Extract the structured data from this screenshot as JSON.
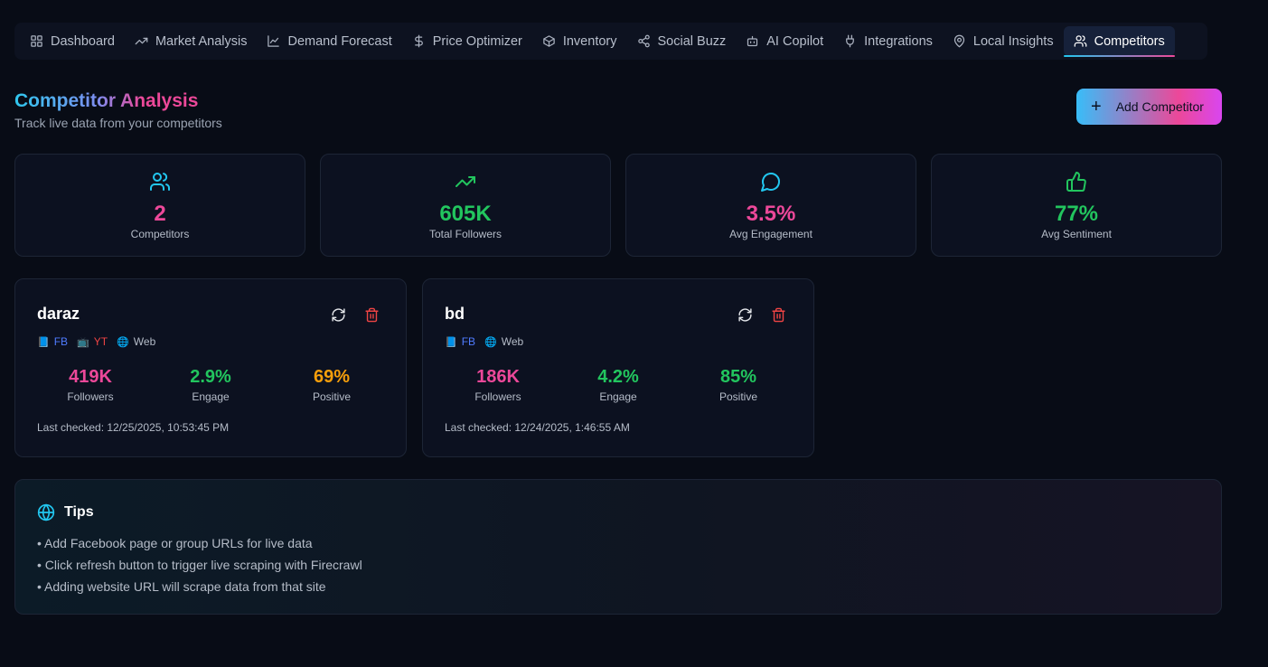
{
  "nav": {
    "items": [
      {
        "label": "Dashboard",
        "icon": "grid-icon"
      },
      {
        "label": "Market Analysis",
        "icon": "trending-up-icon"
      },
      {
        "label": "Demand Forecast",
        "icon": "line-chart-icon"
      },
      {
        "label": "Price Optimizer",
        "icon": "dollar-icon"
      },
      {
        "label": "Inventory",
        "icon": "box-icon"
      },
      {
        "label": "Social Buzz",
        "icon": "share-icon"
      },
      {
        "label": "AI Copilot",
        "icon": "bot-icon"
      },
      {
        "label": "Integrations",
        "icon": "plug-icon"
      },
      {
        "label": "Local Insights",
        "icon": "map-pin-icon"
      },
      {
        "label": "Competitors",
        "icon": "users-icon",
        "active": true
      }
    ]
  },
  "header": {
    "title": "Competitor Analysis",
    "subtitle": "Track live data from your competitors",
    "add_button": "Add Competitor"
  },
  "stats": [
    {
      "value": "2",
      "label": "Competitors",
      "color": "#ec4899",
      "icon": "users-icon"
    },
    {
      "value": "605K",
      "label": "Total Followers",
      "color": "#22c55e",
      "icon": "trending-up-icon"
    },
    {
      "value": "3.5%",
      "label": "Avg Engagement",
      "color": "#ec4899",
      "icon": "message-circle-icon"
    },
    {
      "value": "77%",
      "label": "Avg Sentiment",
      "color": "#22c55e",
      "icon": "thumbs-up-icon"
    }
  ],
  "competitors": [
    {
      "name": "daraz",
      "tags": [
        {
          "label": "FB",
          "glyph": "📘",
          "color": "#4f7cff"
        },
        {
          "label": "YT",
          "glyph": "📺",
          "color": "#ef4444"
        },
        {
          "label": "Web",
          "glyph": "🌐",
          "color": "#b5bcc8"
        }
      ],
      "followers": "419K",
      "followers_label": "Followers",
      "engage": "2.9%",
      "engage_label": "Engage",
      "positive": "69%",
      "positive_label": "Positive",
      "positive_color": "#f59e0b",
      "last_checked": "Last checked: 12/25/2025, 10:53:45 PM"
    },
    {
      "name": "bd",
      "tags": [
        {
          "label": "FB",
          "glyph": "📘",
          "color": "#4f7cff"
        },
        {
          "label": "Web",
          "glyph": "🌐",
          "color": "#b5bcc8"
        }
      ],
      "followers": "186K",
      "followers_label": "Followers",
      "engage": "4.2%",
      "engage_label": "Engage",
      "positive": "85%",
      "positive_label": "Positive",
      "positive_color": "#22c55e",
      "last_checked": "Last checked: 12/24/2025, 1:46:55 AM"
    }
  ],
  "tips": {
    "title": "Tips",
    "items": [
      "• Add Facebook page or group URLs for live data",
      "• Click refresh button to trigger live scraping with Firecrawl",
      "• Adding website URL will scrape data from that site"
    ]
  },
  "colors": {
    "followers": "#ec4899",
    "engage": "#22c55e",
    "accent_cyan": "#22c7f0",
    "delete": "#ef4444"
  }
}
